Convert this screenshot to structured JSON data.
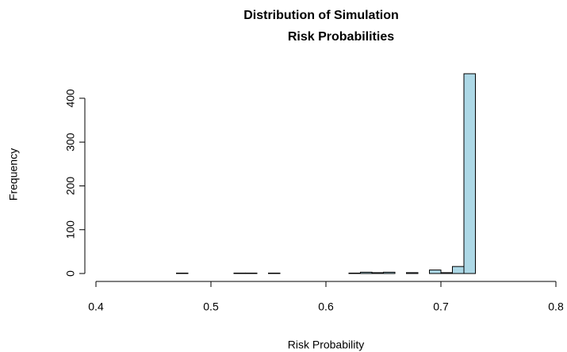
{
  "chart_data": {
    "type": "histogram",
    "title": [
      "Distribution of Simulation",
      "Risk Probabilities"
    ],
    "x_label": "Risk Probability",
    "y_label": "Frequency",
    "bins": [
      0.47,
      0.48,
      0.49,
      0.5,
      0.51,
      0.52,
      0.53,
      0.54,
      0.55,
      0.56,
      0.57,
      0.58,
      0.59,
      0.6,
      0.61,
      0.62,
      0.63,
      0.64,
      0.65,
      0.66,
      0.67,
      0.68,
      0.69,
      0.7,
      0.71,
      0.72,
      0.73
    ],
    "values": [
      1,
      0,
      0,
      0,
      0,
      1,
      1,
      0,
      1,
      0,
      0,
      0,
      0,
      0,
      0,
      1,
      3,
      2,
      3,
      0,
      2,
      0,
      8,
      2,
      16,
      456
    ],
    "color": "#add8e6",
    "xlim": [
      0.4,
      0.8
    ],
    "xticks": [
      0.4,
      0.5,
      0.6,
      0.7,
      0.8
    ],
    "ylim": [
      0,
      456
    ],
    "yticks": [
      0,
      100,
      200,
      300,
      400
    ]
  }
}
